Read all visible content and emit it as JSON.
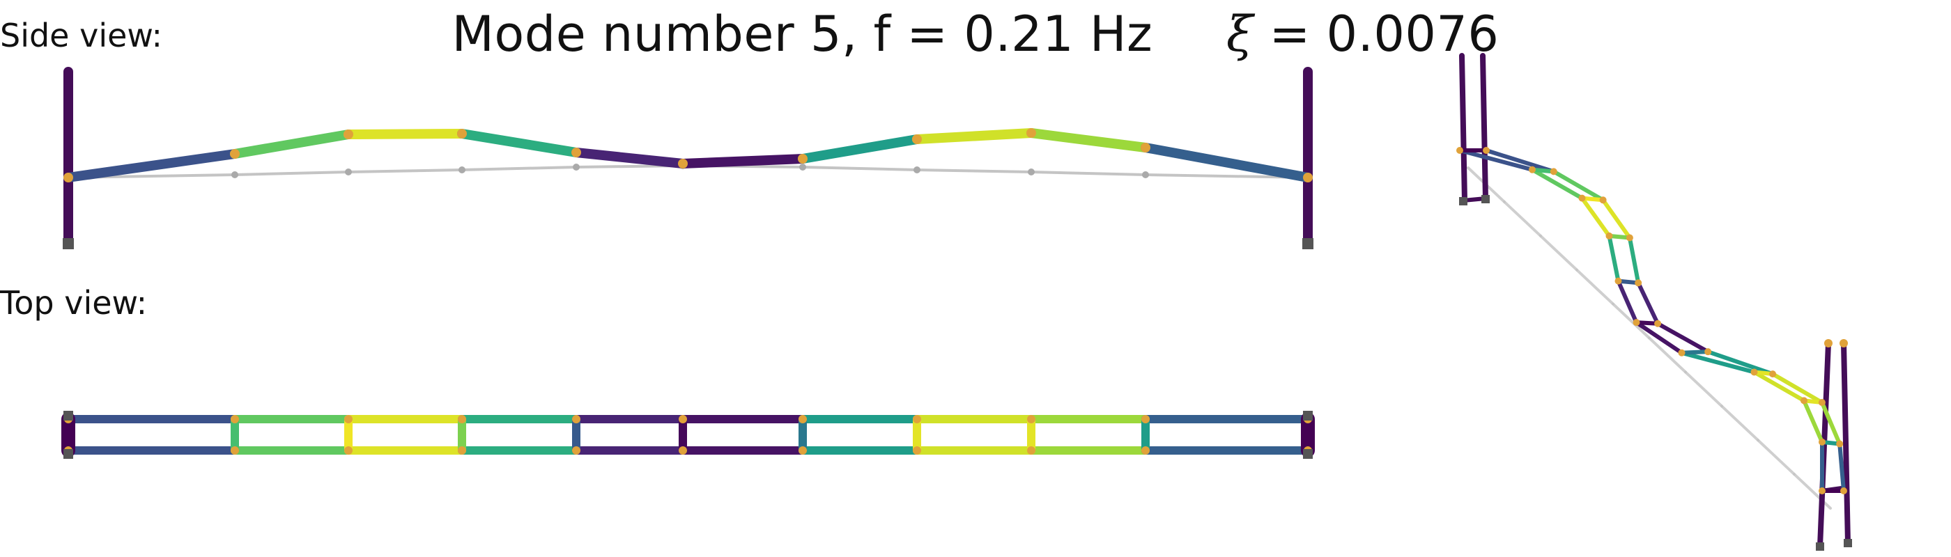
{
  "figure": {
    "title_prefix": "Mode number 5, f = 0.21 Hz",
    "damping_symbol": "ξ",
    "damping_eq": " = 0.0076",
    "side_view_label": "Side view:",
    "top_view_label": "Top view:"
  },
  "colors": {
    "undeformed": "#c4c4c4",
    "node": "#e0a23a",
    "support": "#555555",
    "tower": "#440d58"
  },
  "colormap": "viridis",
  "mode_shape": {
    "segment_intensity": [
      0.25,
      0.75,
      0.95,
      0.62,
      0.1,
      0.05,
      0.55,
      0.93,
      0.85,
      0.3
    ],
    "cross_member_intensity": [
      0.0,
      0.7,
      0.98,
      0.8,
      0.28,
      0.02,
      0.4,
      0.96,
      0.96,
      0.55,
      0.0
    ]
  }
}
